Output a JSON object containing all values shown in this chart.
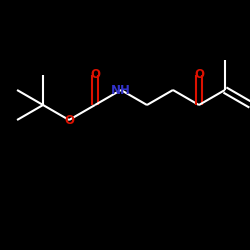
{
  "bg_color": "#000000",
  "bond_color": "#ffffff",
  "O_color": "#dd1100",
  "N_color": "#3333cc",
  "line_width": 1.5,
  "font_size": 8.5,
  "fig_width": 2.5,
  "fig_height": 2.5,
  "dpi": 100,
  "xlim": [
    0,
    10
  ],
  "ylim": [
    0,
    10
  ]
}
